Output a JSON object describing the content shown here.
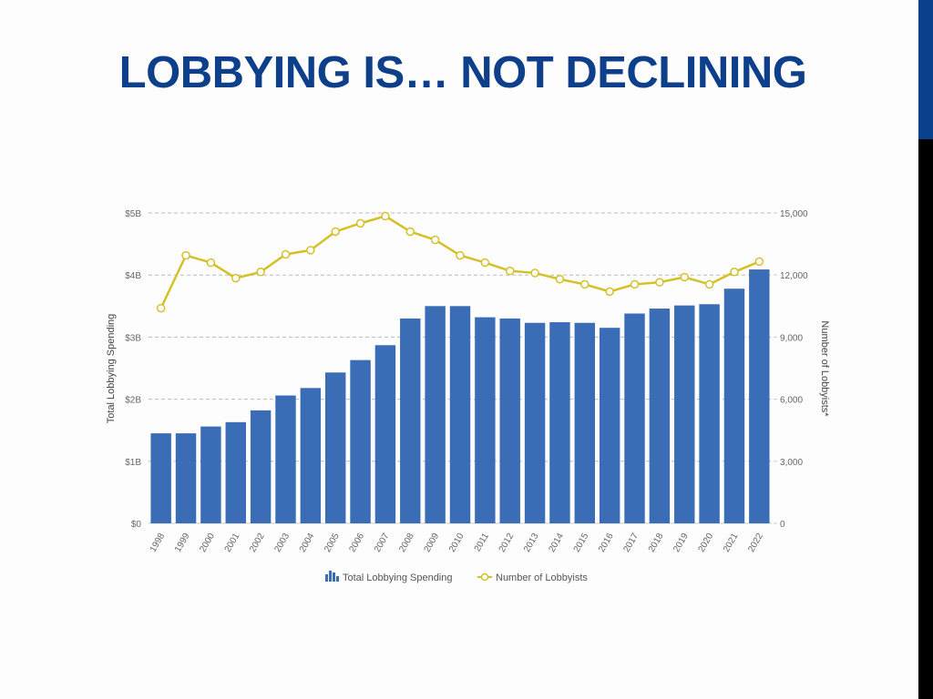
{
  "slide": {
    "title": "LOBBYING IS… NOT DECLINING",
    "accent_color": "#0a3f8c",
    "title_color": "#0d3f8a"
  },
  "chart_data": {
    "type": "bar",
    "title": "",
    "xlabel": "",
    "ylabel": "Total Lobbying Spending",
    "y2label": "Number of Lobbyists*",
    "categories": [
      "1998",
      "1999",
      "2000",
      "2001",
      "2002",
      "2003",
      "2004",
      "2005",
      "2006",
      "2007",
      "2008",
      "2009",
      "2010",
      "2011",
      "2012",
      "2013",
      "2014",
      "2015",
      "2016",
      "2017",
      "2018",
      "2019",
      "2020",
      "2021",
      "2022"
    ],
    "series": [
      {
        "name": "Total Lobbying Spending",
        "type": "bar",
        "axis": "left",
        "unit": "billions USD",
        "color": "#3a6db5",
        "values": [
          1.45,
          1.45,
          1.56,
          1.63,
          1.82,
          2.06,
          2.18,
          2.43,
          2.63,
          2.87,
          3.3,
          3.5,
          3.5,
          3.32,
          3.3,
          3.23,
          3.24,
          3.23,
          3.15,
          3.38,
          3.46,
          3.51,
          3.53,
          3.78,
          4.09
        ]
      },
      {
        "name": "Number of Lobbyists",
        "type": "line",
        "axis": "right",
        "color": "#d4c12a",
        "values": [
          10400,
          12950,
          12600,
          11850,
          12150,
          13000,
          13200,
          14100,
          14500,
          14850,
          14100,
          13700,
          12950,
          12600,
          12200,
          12100,
          11800,
          11550,
          11200,
          11550,
          11650,
          11900,
          11550,
          12150,
          12650
        ]
      }
    ],
    "y_left": {
      "range": [
        0,
        5
      ],
      "ticks": [
        0,
        1,
        2,
        3,
        4,
        5
      ],
      "tick_labels": [
        "$0",
        "$1B",
        "$2B",
        "$3B",
        "$4B",
        "$5B"
      ]
    },
    "y_right": {
      "range": [
        0,
        15000
      ],
      "ticks": [
        0,
        3000,
        6000,
        9000,
        12000,
        15000
      ],
      "tick_labels": [
        "0",
        "3,000",
        "6,000",
        "9,000",
        "12,000",
        "15,000"
      ]
    },
    "grid": true,
    "legend": {
      "position": "bottom",
      "entries": [
        "Total Lobbying Spending",
        "Number of Lobbyists"
      ]
    }
  }
}
